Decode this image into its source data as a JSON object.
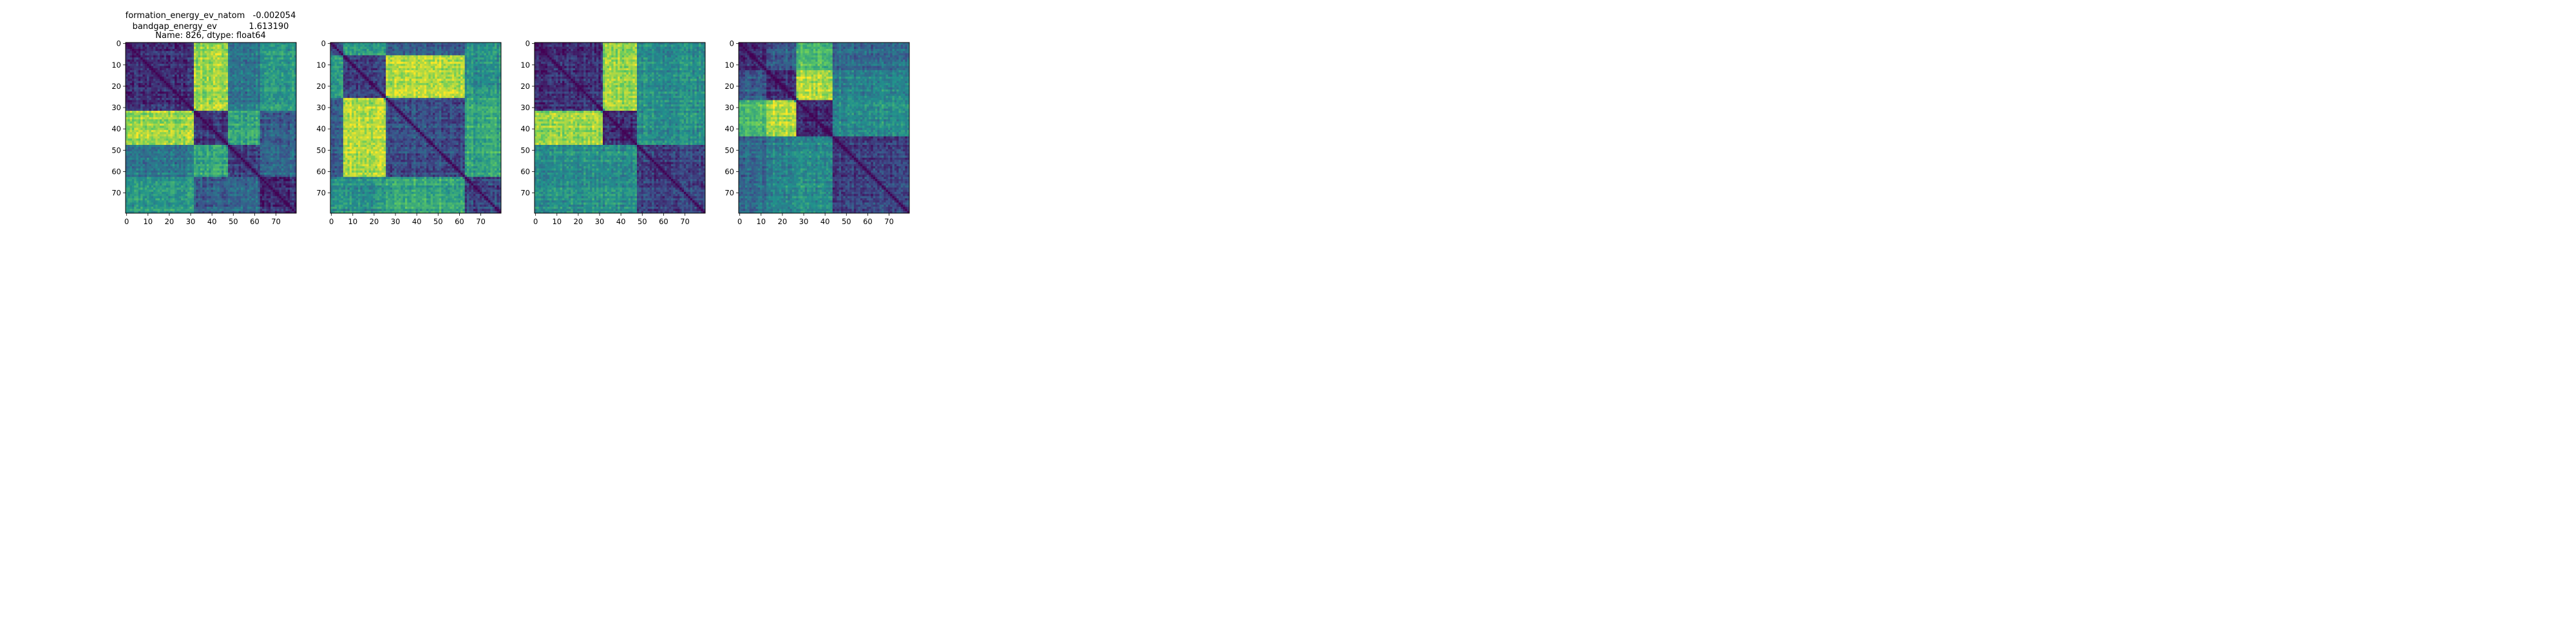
{
  "figure": {
    "title_lines": [
      "formation_energy_ev_natom   -0.002054",
      "bandgap_energy_ev            1.613190",
      "Name: 826, dtype: float64"
    ]
  },
  "colormap": {
    "name": "viridis",
    "stops": [
      "#440154",
      "#3b528b",
      "#21918c",
      "#5ec962",
      "#fde725"
    ]
  },
  "chart_data": [
    {
      "type": "heatmap",
      "title": "formation_energy_ev_natom   -0.002054\nbandgap_energy_ev            1.613190\nName: 826, dtype: float64",
      "size": 80,
      "xticks": [
        0,
        10,
        20,
        30,
        40,
        50,
        60,
        70
      ],
      "yticks": [
        0,
        10,
        20,
        30,
        40,
        50,
        60,
        70
      ],
      "xlim": [
        0,
        79
      ],
      "ylim": [
        79,
        0
      ],
      "block_boundaries": [
        0,
        32,
        48,
        63,
        80
      ],
      "block_matrix": [
        [
          0.15,
          0.85,
          0.4,
          0.55
        ],
        [
          0.85,
          0.15,
          0.6,
          0.3
        ],
        [
          0.4,
          0.6,
          0.2,
          0.35
        ],
        [
          0.55,
          0.3,
          0.35,
          0.15
        ]
      ],
      "seed": 11
    },
    {
      "type": "heatmap",
      "title": "",
      "size": 80,
      "xticks": [
        0,
        10,
        20,
        30,
        40,
        50,
        60,
        70
      ],
      "yticks": [
        0,
        10,
        20,
        30,
        40,
        50,
        60,
        70
      ],
      "xlim": [
        0,
        79
      ],
      "ylim": [
        79,
        0
      ],
      "block_boundaries": [
        0,
        6,
        26,
        63,
        80
      ],
      "block_matrix": [
        [
          0.25,
          0.55,
          0.3,
          0.5
        ],
        [
          0.55,
          0.2,
          0.9,
          0.5
        ],
        [
          0.3,
          0.9,
          0.25,
          0.6
        ],
        [
          0.5,
          0.5,
          0.6,
          0.2
        ]
      ],
      "seed": 23
    },
    {
      "type": "heatmap",
      "title": "",
      "size": 80,
      "xticks": [
        0,
        10,
        20,
        30,
        40,
        50,
        60,
        70
      ],
      "yticks": [
        0,
        10,
        20,
        30,
        40,
        50,
        60,
        70
      ],
      "xlim": [
        0,
        79
      ],
      "ylim": [
        79,
        0
      ],
      "block_boundaries": [
        0,
        32,
        48,
        80
      ],
      "block_matrix": [
        [
          0.15,
          0.85,
          0.5
        ],
        [
          0.85,
          0.15,
          0.5
        ],
        [
          0.5,
          0.5,
          0.2
        ]
      ],
      "seed": 37
    },
    {
      "type": "heatmap",
      "title": "",
      "size": 80,
      "xticks": [
        0,
        10,
        20,
        30,
        40,
        50,
        60,
        70
      ],
      "yticks": [
        0,
        10,
        20,
        30,
        40,
        50,
        60,
        70
      ],
      "xlim": [
        0,
        79
      ],
      "ylim": [
        79,
        0
      ],
      "block_boundaries": [
        0,
        13,
        27,
        44,
        80
      ],
      "block_matrix": [
        [
          0.15,
          0.3,
          0.7,
          0.35
        ],
        [
          0.3,
          0.15,
          0.9,
          0.45
        ],
        [
          0.7,
          0.9,
          0.15,
          0.5
        ],
        [
          0.35,
          0.45,
          0.5,
          0.2
        ]
      ],
      "seed": 53
    }
  ]
}
